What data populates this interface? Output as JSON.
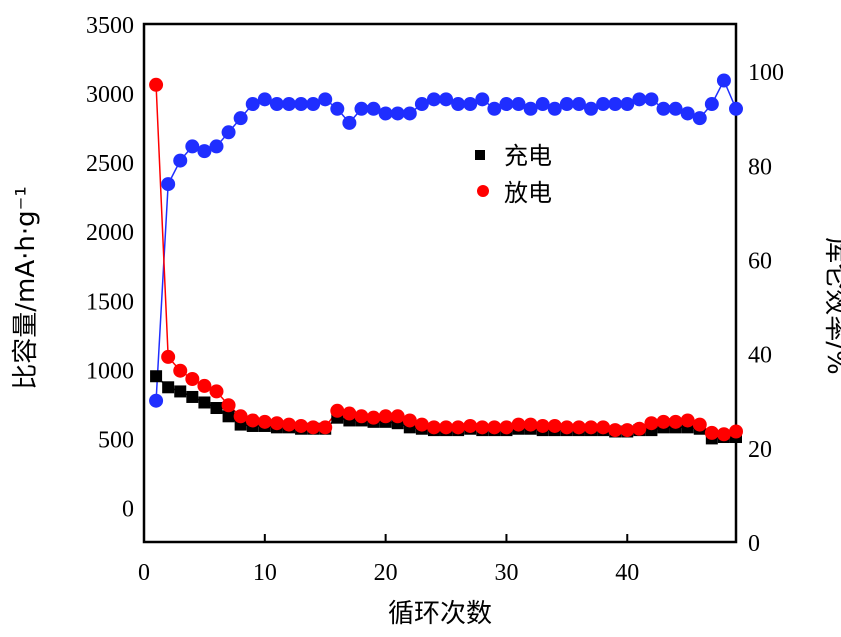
{
  "chart_data": {
    "type": "scatter",
    "xlabel": "循环次数",
    "ylabel_left": "比容量/mA·h·g⁻¹",
    "ylabel_right": "库仑效率/%",
    "xlim": [
      0,
      49
    ],
    "ylim_left": [
      -250,
      3500
    ],
    "ylim_right": [
      0,
      110
    ],
    "x_ticks": [
      "0",
      "10",
      "20",
      "30",
      "40"
    ],
    "y_left_ticks": [
      "0",
      "500",
      "1000",
      "1500",
      "2000",
      "2500",
      "3000",
      "3500"
    ],
    "y_right_ticks": [
      "0",
      "20",
      "40",
      "60",
      "80",
      "100"
    ],
    "legend": [
      "充电",
      "放电"
    ],
    "legend_position": "upper-middle",
    "colors": {
      "charge": "#000000",
      "discharge": "#ff0000",
      "efficiency": "#1f2eff"
    },
    "x": [
      1,
      2,
      3,
      4,
      5,
      6,
      7,
      8,
      9,
      10,
      11,
      12,
      13,
      14,
      15,
      16,
      17,
      18,
      19,
      20,
      21,
      22,
      23,
      24,
      25,
      26,
      27,
      28,
      29,
      30,
      31,
      32,
      33,
      34,
      35,
      36,
      37,
      38,
      39,
      40,
      41,
      42,
      43,
      44,
      45,
      46,
      47,
      48,
      49
    ],
    "series": [
      {
        "name": "充电",
        "axis": "left",
        "values": [
          950,
          870,
          840,
          800,
          760,
          720,
          660,
          600,
          590,
          590,
          580,
          580,
          570,
          570,
          570,
          650,
          630,
          630,
          620,
          620,
          610,
          580,
          570,
          560,
          560,
          560,
          570,
          560,
          560,
          560,
          570,
          570,
          560,
          560,
          560,
          560,
          560,
          560,
          550,
          550,
          560,
          560,
          580,
          580,
          580,
          570,
          500,
          510,
          510
        ]
      },
      {
        "name": "放电",
        "axis": "right_hidden_left",
        "values": [
          3060,
          1090,
          990,
          930,
          880,
          840,
          740,
          660,
          630,
          620,
          610,
          600,
          590,
          580,
          580,
          700,
          680,
          660,
          650,
          660,
          660,
          630,
          600,
          580,
          580,
          580,
          590,
          580,
          580,
          580,
          600,
          600,
          590,
          590,
          580,
          580,
          580,
          580,
          560,
          560,
          570,
          610,
          620,
          620,
          630,
          600,
          540,
          530,
          550
        ]
      },
      {
        "name": "",
        "axis": "right",
        "values": [
          30,
          76,
          81,
          84,
          83,
          84,
          87,
          90,
          93,
          94,
          93,
          93,
          93,
          93,
          94,
          92,
          89,
          92,
          92,
          91,
          91,
          91,
          93,
          94,
          94,
          93,
          93,
          94,
          92,
          93,
          93,
          92,
          93,
          92,
          93,
          93,
          92,
          93,
          93,
          93,
          94,
          94,
          92,
          92,
          91,
          90,
          93,
          98,
          92
        ]
      }
    ]
  }
}
